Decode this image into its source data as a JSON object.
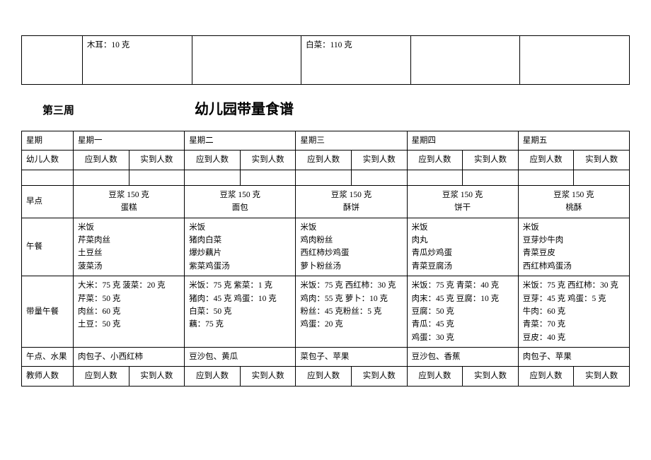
{
  "top_table": {
    "col1": "",
    "col2": "木耳：10 克",
    "col3": "",
    "col4": "白菜：110 克",
    "col5": "",
    "col6": ""
  },
  "week_label": "第三周",
  "main_title": "幼儿园带量食谱",
  "headers": {
    "weekday": "星期",
    "mon": "星期一",
    "tue": "星期二",
    "wed": "星期三",
    "thu": "星期四",
    "fri": "星期五",
    "child_count": "幼儿人数",
    "should": "应到人数",
    "actual": "实到人数",
    "morning_snack": "早点",
    "lunch": "午餐",
    "lunch_qty": "带量午餐",
    "afternoon_snack": "午点、水果",
    "teacher_count": "教师人数"
  },
  "morning_snack": {
    "mon": "豆浆 150 克\n蛋糕",
    "tue": "豆浆 150 克\n面包",
    "wed": "豆浆 150 克\n酥饼",
    "thu": "豆浆 150 克\n饼干",
    "fri": "豆浆 150 克\n桃酥"
  },
  "lunch": {
    "mon": "米饭\n芹菜肉丝\n土豆丝\n菠菜汤",
    "tue": "米饭\n猪肉白菜\n爆炒藕片\n紫菜鸡蛋汤",
    "wed": "米饭\n鸡肉粉丝\n西红柿炒鸡蛋\n萝卜粉丝汤",
    "thu": "米饭\n肉丸\n青瓜炒鸡蛋\n青菜豆腐汤",
    "fri": "米饭\n豆芽炒牛肉\n青菜豆皮\n西红柿鸡蛋汤"
  },
  "lunch_qty": {
    "mon": "大米：75 克  菠菜：20 克\n芹菜：50 克\n肉丝：60 克\n土豆：50 克",
    "tue": "米饭：75 克  紫菜：1 克\n猪肉：45 克 鸡蛋：10 克\n白菜：50 克\n藕：75 克",
    "wed": "米饭：75 克 西红柿：30 克\n鸡肉：55 克 萝卜：10 克\n粉丝：45 克粉丝：5 克\n鸡蛋：20 克",
    "thu": "米饭：75 克 青菜：40 克\n肉末：45 克   豆腐：10 克\n豆腐：50 克\n青瓜：45 克\n鸡蛋：30 克",
    "fri": "米饭：75 克 西红柿：30 克\n豆芽：45 克 鸡蛋：5 克\n牛肉：60 克\n青菜：70 克\n豆皮：40 克"
  },
  "afternoon_snack": {
    "mon": "肉包子、小西红柿",
    "tue": "豆沙包、黄瓜",
    "wed": "菜包子、苹果",
    "thu": "豆沙包、香蕉",
    "fri": "肉包子、苹果"
  },
  "colors": {
    "background": "#ffffff",
    "text": "#000000",
    "border": "#000000"
  }
}
